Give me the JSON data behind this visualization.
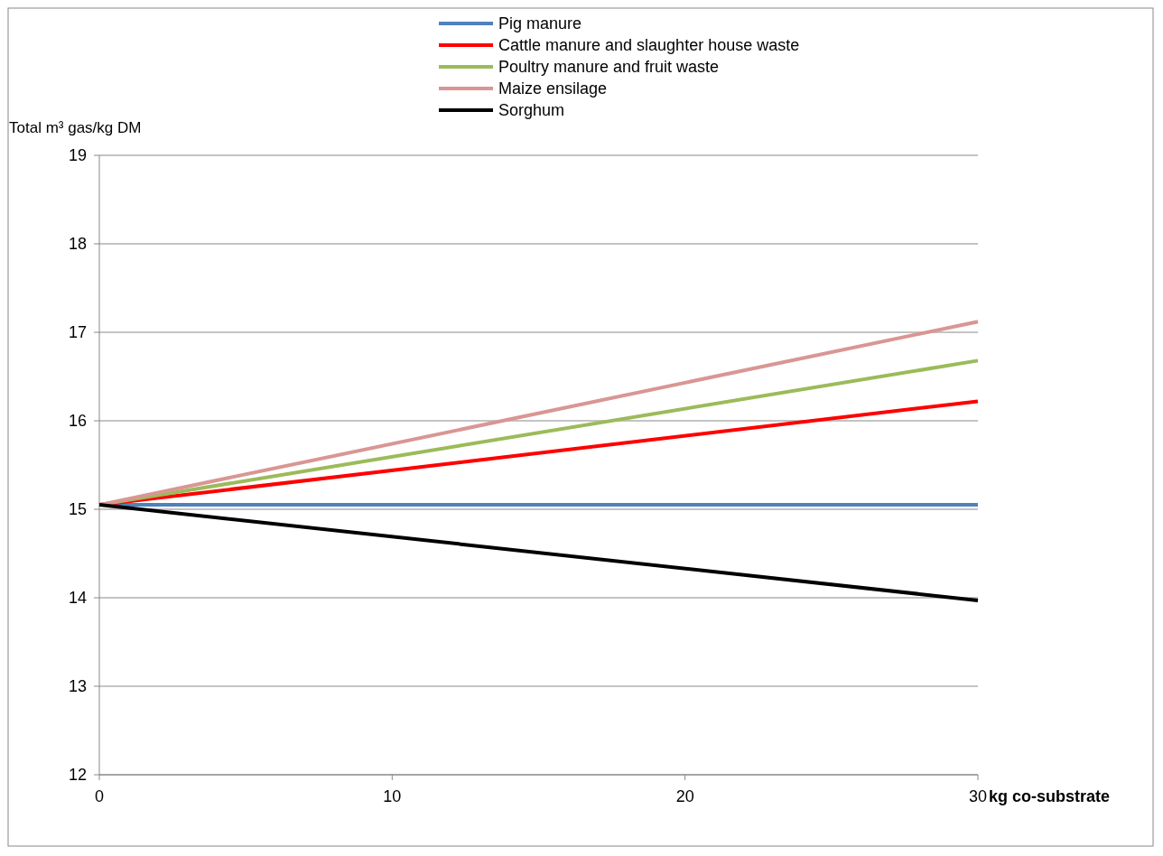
{
  "chart_data": {
    "type": "line",
    "ylabel": "Total m³ gas/kg DM",
    "xlabel": "kg co-substrate",
    "x": [
      0,
      30
    ],
    "xlim": [
      0,
      30
    ],
    "xticks": [
      0,
      10,
      20,
      30
    ],
    "ylim": [
      12,
      19
    ],
    "yticks": [
      12,
      13,
      14,
      15,
      16,
      17,
      18,
      19
    ],
    "grid": "y",
    "legend": "top",
    "marker": "none",
    "line_style": "solid",
    "series": [
      {
        "name": "Pig manure",
        "color": "#4f81bd",
        "values": [
          15.05,
          15.05
        ]
      },
      {
        "name": "Cattle manure and slaughter house waste",
        "color": "#ff0000",
        "values": [
          15.05,
          16.22
        ]
      },
      {
        "name": "Poultry manure and fruit waste",
        "color": "#9bbb59",
        "values": [
          15.05,
          16.68
        ]
      },
      {
        "name": "Maize ensilage",
        "color": "#d99694",
        "values": [
          15.05,
          17.12
        ]
      },
      {
        "name": "Sorghum",
        "color": "#000000",
        "values": [
          15.05,
          13.97
        ]
      }
    ]
  }
}
